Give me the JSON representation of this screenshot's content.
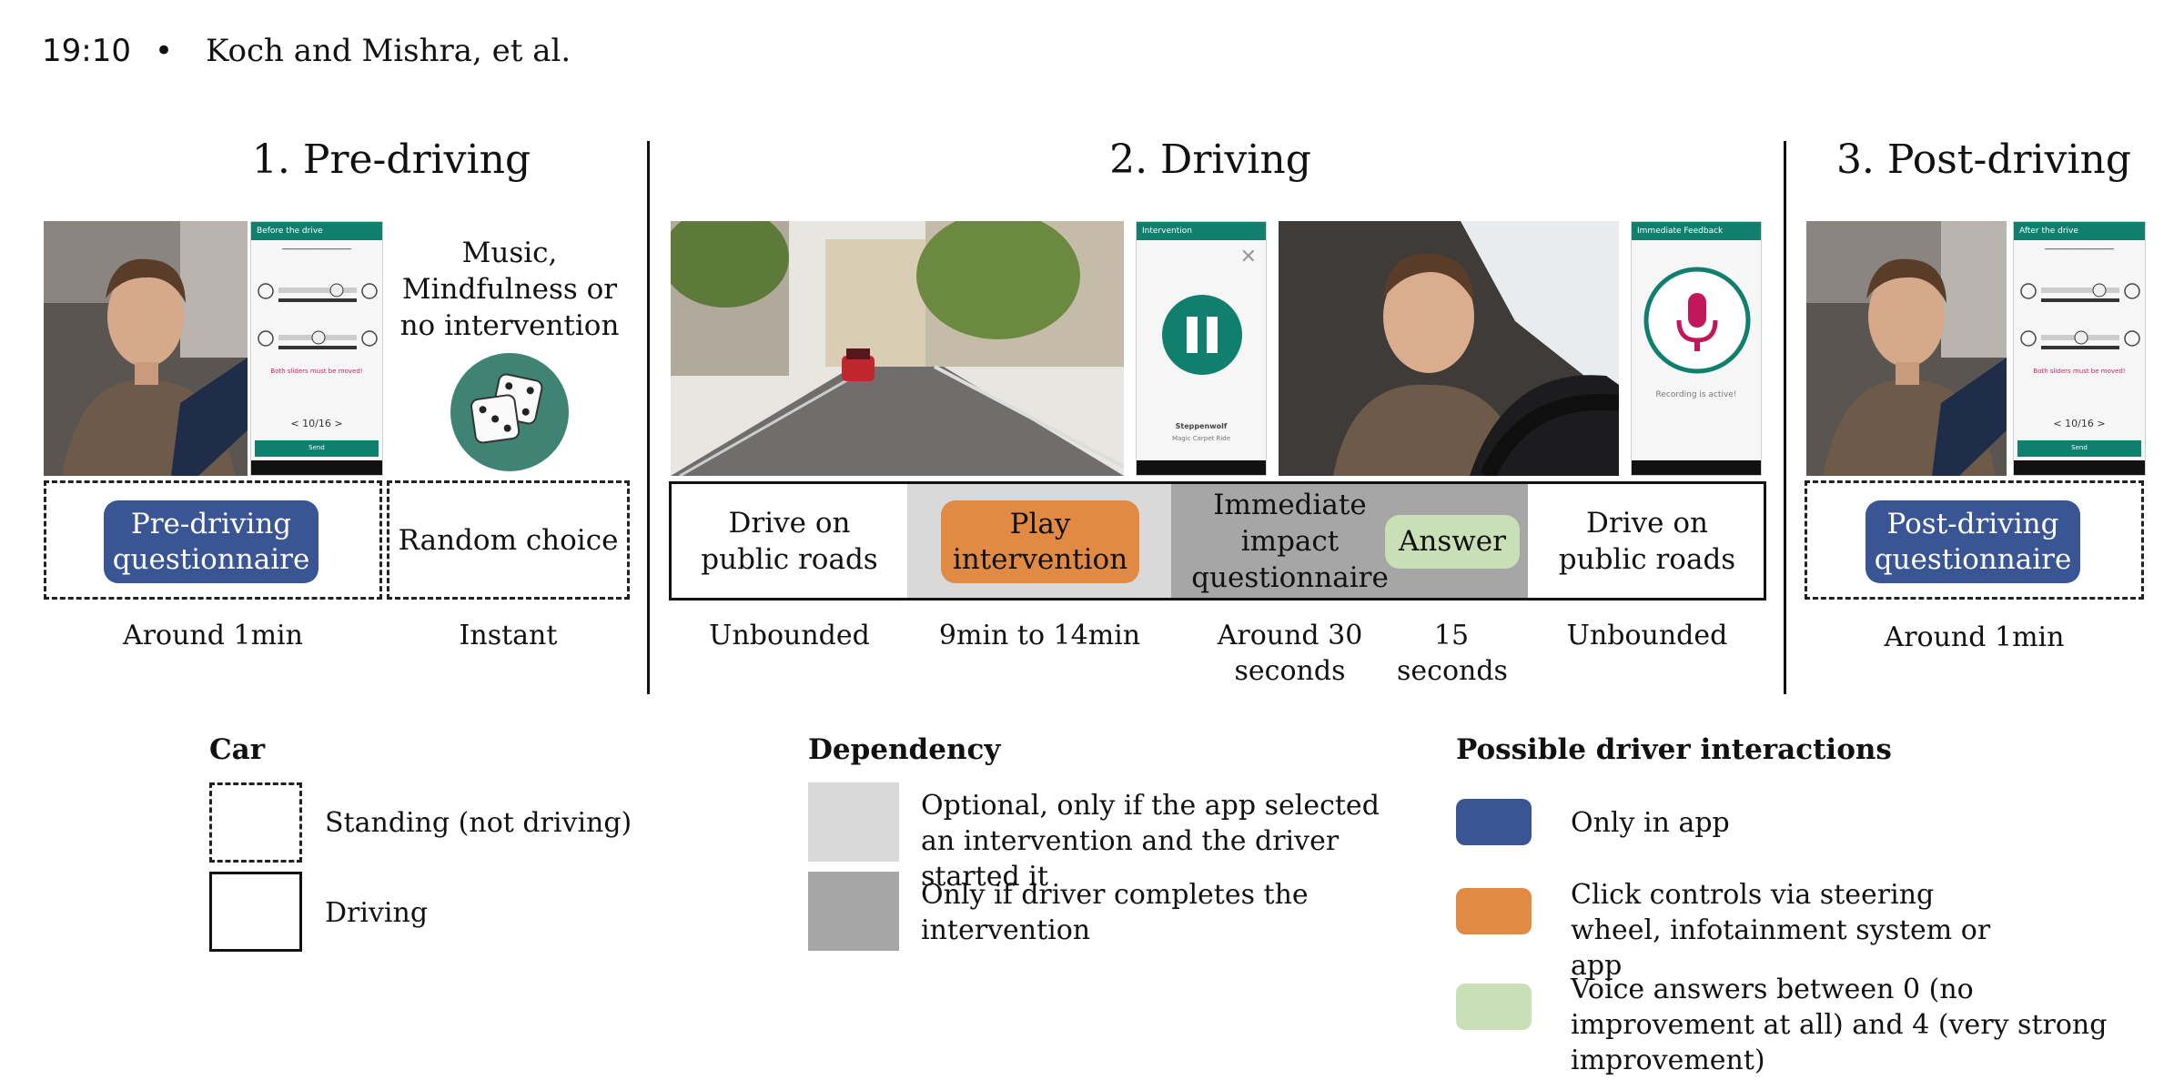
{
  "header": {
    "page": "19:10",
    "bullet": "•",
    "authors": "Koch and Mishra, et al."
  },
  "sections": {
    "pre": {
      "title": "1. Pre-driving"
    },
    "driving": {
      "title": "2. Driving"
    },
    "post": {
      "title": "3. Post-driving"
    }
  },
  "pre_app": {
    "bar": "Before the drive",
    "send": "Send",
    "pager": "< 10/16 >",
    "warn": "Both sliders must be moved!"
  },
  "post_app": {
    "bar": "After the drive",
    "send": "Send",
    "pager": "< 10/16 >",
    "warn": "Both sliders must be moved!"
  },
  "intervention_app": {
    "bar": "Intervention",
    "track": "Steppenwolf",
    "track_sub": "Magic Carpet Ride"
  },
  "feedback_app": {
    "bar": "Immediate Feedback",
    "status": "Recording is active!"
  },
  "pre_choice": {
    "line1": "Music,",
    "line2": "Mindfulness or",
    "line3": "no intervention"
  },
  "pre_boxes": {
    "questionnaire": "Pre-driving questionnaire",
    "random": "Random choice"
  },
  "pre_durations": {
    "questionnaire": "Around 1min",
    "random": "Instant"
  },
  "driving_cells": {
    "drive1": "Drive on public roads",
    "play": "Play intervention",
    "impact": "Immediate impact questionnaire",
    "answer": "Answer",
    "drive2": "Drive on public roads"
  },
  "driving_durations": {
    "drive1": "Unbounded",
    "play": "9min to 14min",
    "impact": "Around 30 seconds",
    "answer": "15 seconds",
    "drive2": "Unbounded"
  },
  "post_boxes": {
    "questionnaire": "Post-driving questionnaire"
  },
  "post_durations": {
    "questionnaire": "Around 1min"
  },
  "legend": {
    "car": {
      "title": "Car",
      "standing": "Standing (not driving)",
      "driving": "Driving"
    },
    "dependency": {
      "title": "Dependency",
      "optional": "Optional, only if the app selected an intervention and the driver started it",
      "completes": "Only if driver completes the intervention"
    },
    "interactions": {
      "title": "Possible driver interactions",
      "app": "Only in app",
      "click": "Click controls via steering wheel, infotainment system or app",
      "voice": "Voice answers between 0 (no improvement at all) and 4 (very strong improvement)"
    }
  },
  "colors": {
    "blue": "#3a5594",
    "orange": "#e08a44",
    "green": "#c9e0b6",
    "light_gray": "#d9d9d9",
    "dark_gray": "#a6a6a6",
    "teal": "#117f6e",
    "mic": "#c2185b"
  }
}
